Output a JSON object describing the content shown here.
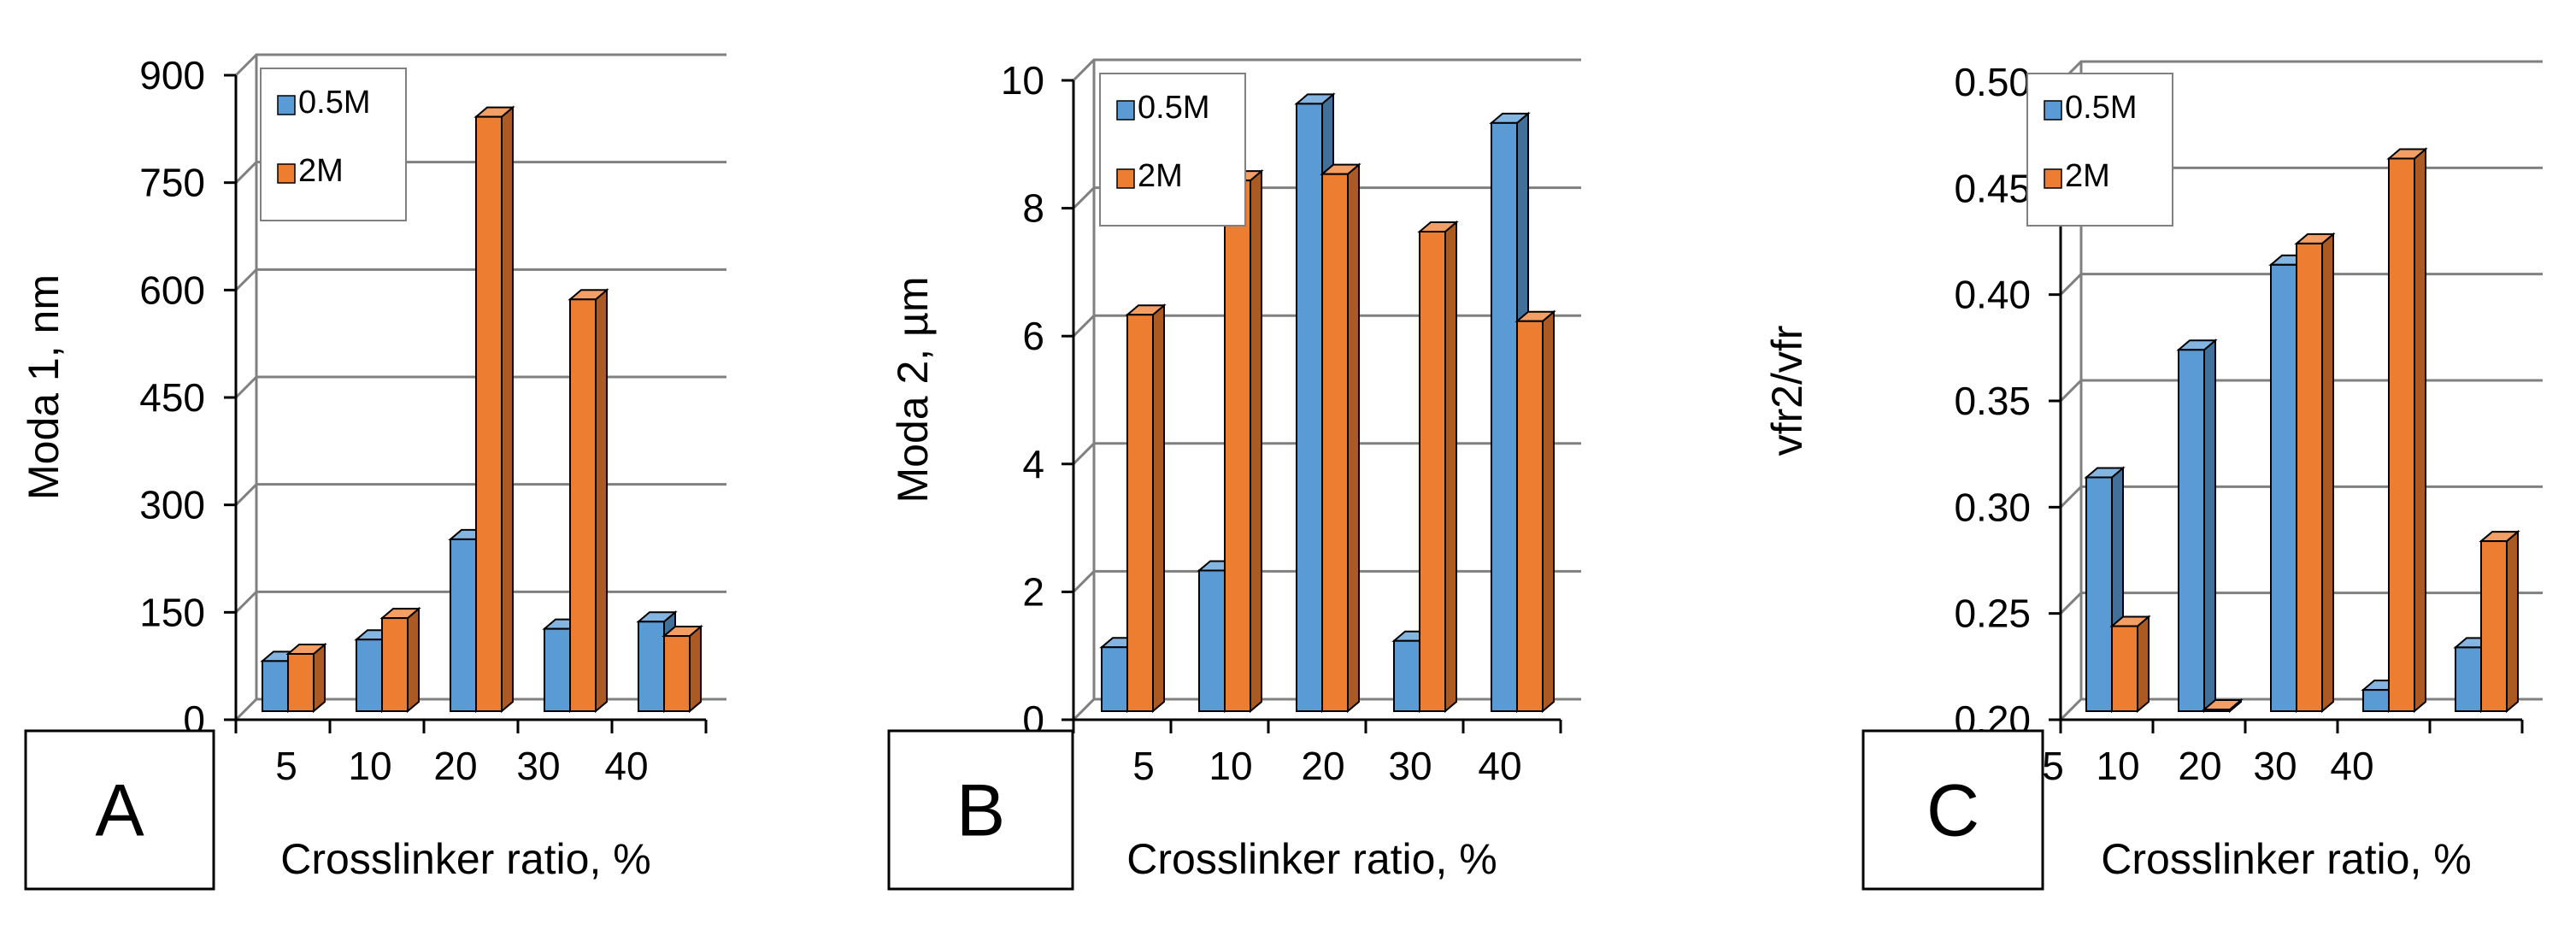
{
  "chart_data": [
    {
      "type": "bar",
      "panel_label": "A",
      "categories": [
        "5",
        "10",
        "20",
        "30",
        "40"
      ],
      "xlabel": "Crosslinker ratio, %",
      "ylabel": "Moda 1, nm",
      "ylim": [
        0,
        900
      ],
      "yticks": [
        "0",
        "150",
        "300",
        "450",
        "600",
        "750",
        "900"
      ],
      "grid": true,
      "legend_position": "top-left",
      "series": [
        {
          "name": "0.5M",
          "color": "#5b9bd5",
          "values": [
            70,
            100,
            240,
            115,
            125
          ]
        },
        {
          "name": "2M",
          "color": "#ed7d31",
          "values": [
            80,
            130,
            830,
            575,
            105
          ]
        }
      ]
    },
    {
      "type": "bar",
      "panel_label": "B",
      "categories": [
        "5",
        "10",
        "20",
        "30",
        "40"
      ],
      "xlabel": "Crosslinker ratio, %",
      "ylabel": "Moda 2, µm",
      "ylim": [
        0,
        10
      ],
      "yticks": [
        "0",
        "2",
        "4",
        "6",
        "8",
        "10"
      ],
      "grid": true,
      "legend_position": "top-left",
      "series": [
        {
          "name": "0.5M",
          "color": "#5b9bd5",
          "values": [
            1.0,
            2.2,
            9.5,
            1.1,
            9.2
          ]
        },
        {
          "name": "2M",
          "color": "#ed7d31",
          "values": [
            6.2,
            8.3,
            8.4,
            7.5,
            6.1
          ]
        }
      ]
    },
    {
      "type": "bar",
      "panel_label": "C",
      "categories": [
        "5",
        "10",
        "20",
        "30",
        "40"
      ],
      "xlabel": "Crosslinker ratio, %",
      "ylabel": "vfr2/vfr",
      "ylim": [
        0.2,
        0.5
      ],
      "yticks": [
        "0.20",
        "0.25",
        "0.30",
        "0.35",
        "0.40",
        "0.45",
        "0.50"
      ],
      "grid": true,
      "legend_position": "top-left",
      "series": [
        {
          "name": "0.5M",
          "color": "#5b9bd5",
          "values": [
            0.31,
            0.37,
            0.41,
            0.21,
            0.23
          ]
        },
        {
          "name": "2M",
          "color": "#ed7d31",
          "values": [
            0.24,
            0.2,
            0.42,
            0.46,
            0.28
          ]
        }
      ]
    }
  ]
}
